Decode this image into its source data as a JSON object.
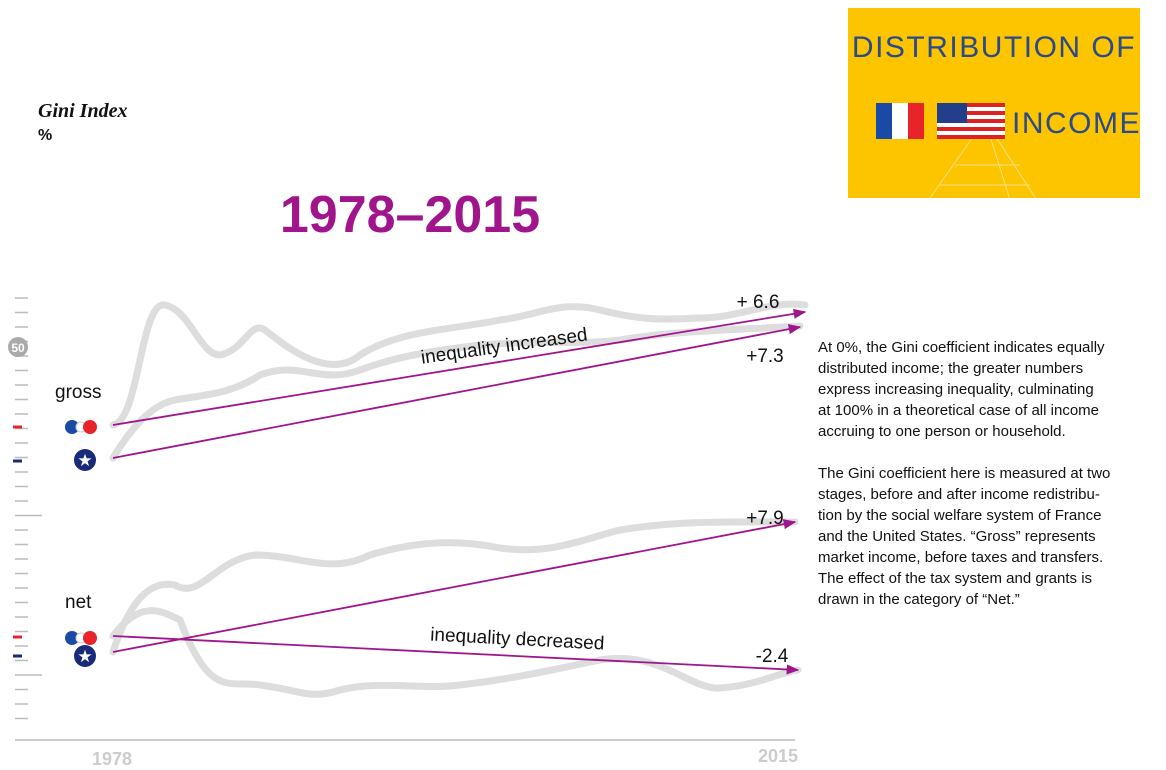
{
  "badge": {
    "line1": "DISTRIBUTION OF",
    "line2": "INCOME"
  },
  "axis": {
    "title": "Gini Index",
    "unit": "%",
    "tick_label": "50",
    "start_label": "1978",
    "end_label": "2015"
  },
  "period": "1978–2015",
  "groups": [
    {
      "label": "gross"
    },
    {
      "label": "net"
    }
  ],
  "changes": [
    {
      "label": "+ 6.6"
    },
    {
      "label": "+7.3"
    },
    {
      "label": "+7.9"
    },
    {
      "label": "-2.4"
    }
  ],
  "annotations": [
    "inequality increased",
    "inequality decreased"
  ],
  "notes": [
    [
      "At 0%, the Gini coefficient indicates equally",
      "distributed income; the greater numbers",
      "express increasing inequality, culminating",
      "at 100% in a theoretical case of all income",
      "accruing to one person or household."
    ],
    [
      "The Gini coefficient here is measured at two",
      "stages, before and after income redistribu-",
      "tion by the social welfare system of France",
      "and the United States. “Gross” represents",
      "market income, before taxes and transfers.",
      "The effect of the tax system and grants is",
      "drawn in the category of “Net.”"
    ]
  ]
}
